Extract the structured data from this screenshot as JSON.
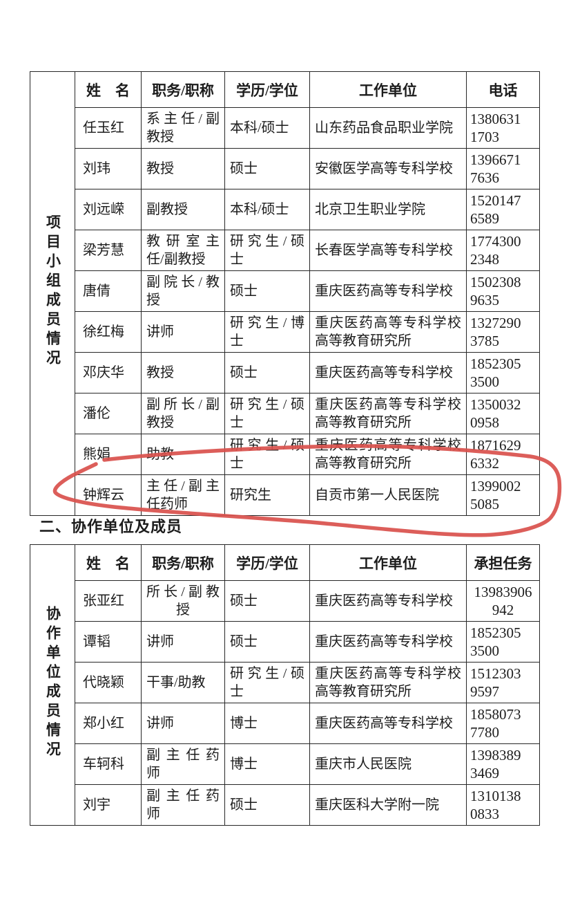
{
  "section2_heading": "二、协作单位及成员",
  "annotation": {
    "shape": "hand-drawn red circle",
    "color": "#d9504c",
    "encircles": "钟辉云 row"
  },
  "table1": {
    "side_label": "项目小组成员情况",
    "headers": [
      "姓　名",
      "职务/职称",
      "学历/学位",
      "工作单位",
      "电话"
    ],
    "rows": [
      {
        "name": "任玉红",
        "title": [
          "系主任/副",
          "教授"
        ],
        "degree": [
          "本科/硕士"
        ],
        "org": [
          "山东药品食品职业学院"
        ],
        "phone": [
          "1380631",
          "1703"
        ]
      },
      {
        "name": "刘玮",
        "title": [
          "教授"
        ],
        "degree": [
          "硕士"
        ],
        "org": [
          "安徽医学高等专科学校"
        ],
        "phone": [
          "1396671",
          "7636"
        ]
      },
      {
        "name": "刘远嵘",
        "title": [
          "副教授"
        ],
        "degree": [
          "本科/硕士"
        ],
        "org": [
          "北京卫生职业学院"
        ],
        "phone": [
          "1520147",
          "6589"
        ]
      },
      {
        "name": "梁芳慧",
        "title": [
          "教研室主",
          "任/副教授"
        ],
        "degree": [
          "研究生/硕",
          "士"
        ],
        "org": [
          "长春医学高等专科学校"
        ],
        "phone": [
          "1774300",
          "2348"
        ]
      },
      {
        "name": "唐倩",
        "title": [
          "副院长/教",
          "授"
        ],
        "degree": [
          "硕士"
        ],
        "org": [
          "重庆医药高等专科学校"
        ],
        "phone": [
          "1502308",
          "9635"
        ]
      },
      {
        "name": "徐红梅",
        "title": [
          "讲师"
        ],
        "degree": [
          "研究生/博",
          "士"
        ],
        "org": [
          "重庆医药高等专科学校",
          "高等教育研究所"
        ],
        "phone": [
          "1327290",
          "3785"
        ]
      },
      {
        "name": "邓庆华",
        "title": [
          "教授"
        ],
        "degree": [
          "硕士"
        ],
        "org": [
          "重庆医药高等专科学校"
        ],
        "phone": [
          "1852305",
          "3500"
        ]
      },
      {
        "name": "潘伦",
        "title": [
          "副所长/副",
          "教授"
        ],
        "degree": [
          "研究生/硕",
          "士"
        ],
        "org": [
          "重庆医药高等专科学校",
          "高等教育研究所"
        ],
        "phone": [
          "1350032",
          "0958"
        ]
      },
      {
        "name": "熊娟",
        "title": [
          "助教"
        ],
        "degree": [
          "研究生/硕",
          "士"
        ],
        "org": [
          "重庆医药高等专科学校",
          "高等教育研究所"
        ],
        "phone": [
          "1871629",
          "6332"
        ]
      },
      {
        "name": "钟辉云",
        "title": [
          "主任/副主",
          "任药师"
        ],
        "degree": [
          "研究生"
        ],
        "org": [
          "自贡市第一人民医院"
        ],
        "phone": [
          "1399002",
          "5085"
        ]
      }
    ]
  },
  "table2": {
    "side_label": "协作单位成员情况",
    "headers": [
      "姓　名",
      "职务/职称",
      "学历/学位",
      "工作单位",
      "承担任务"
    ],
    "rows": [
      {
        "name": "张亚红",
        "title": [
          "所长/副教",
          "授"
        ],
        "title_align": "center",
        "degree": [
          "硕士"
        ],
        "org": [
          "重庆医药高等专科学校"
        ],
        "phone": [
          "13983906",
          "942"
        ],
        "phone_align": "center"
      },
      {
        "name": "谭韬",
        "title": [
          "讲师"
        ],
        "degree": [
          "硕士"
        ],
        "org": [
          "重庆医药高等专科学校"
        ],
        "phone": [
          "1852305",
          "3500"
        ]
      },
      {
        "name": "代晓颖",
        "title": [
          "干事/助教"
        ],
        "degree": [
          "研究生/硕",
          "士"
        ],
        "org": [
          "重庆医药高等专科学校",
          "高等教育研究所"
        ],
        "phone": [
          "1512303",
          "9597"
        ]
      },
      {
        "name": "郑小红",
        "title": [
          "讲师"
        ],
        "degree": [
          "博士"
        ],
        "org": [
          "重庆医药高等专科学校"
        ],
        "phone": [
          "1858073",
          "7780"
        ]
      },
      {
        "name": "车轲科",
        "title": [
          "副主任药",
          "师"
        ],
        "degree": [
          "博士"
        ],
        "org": [
          "重庆市人民医院"
        ],
        "phone": [
          "1398389",
          "3469"
        ]
      },
      {
        "name": "刘宇",
        "title": [
          "副主任药",
          "师"
        ],
        "degree": [
          "硕士"
        ],
        "org": [
          "重庆医科大学附一院"
        ],
        "phone": [
          "1310138",
          "0833"
        ]
      }
    ]
  }
}
